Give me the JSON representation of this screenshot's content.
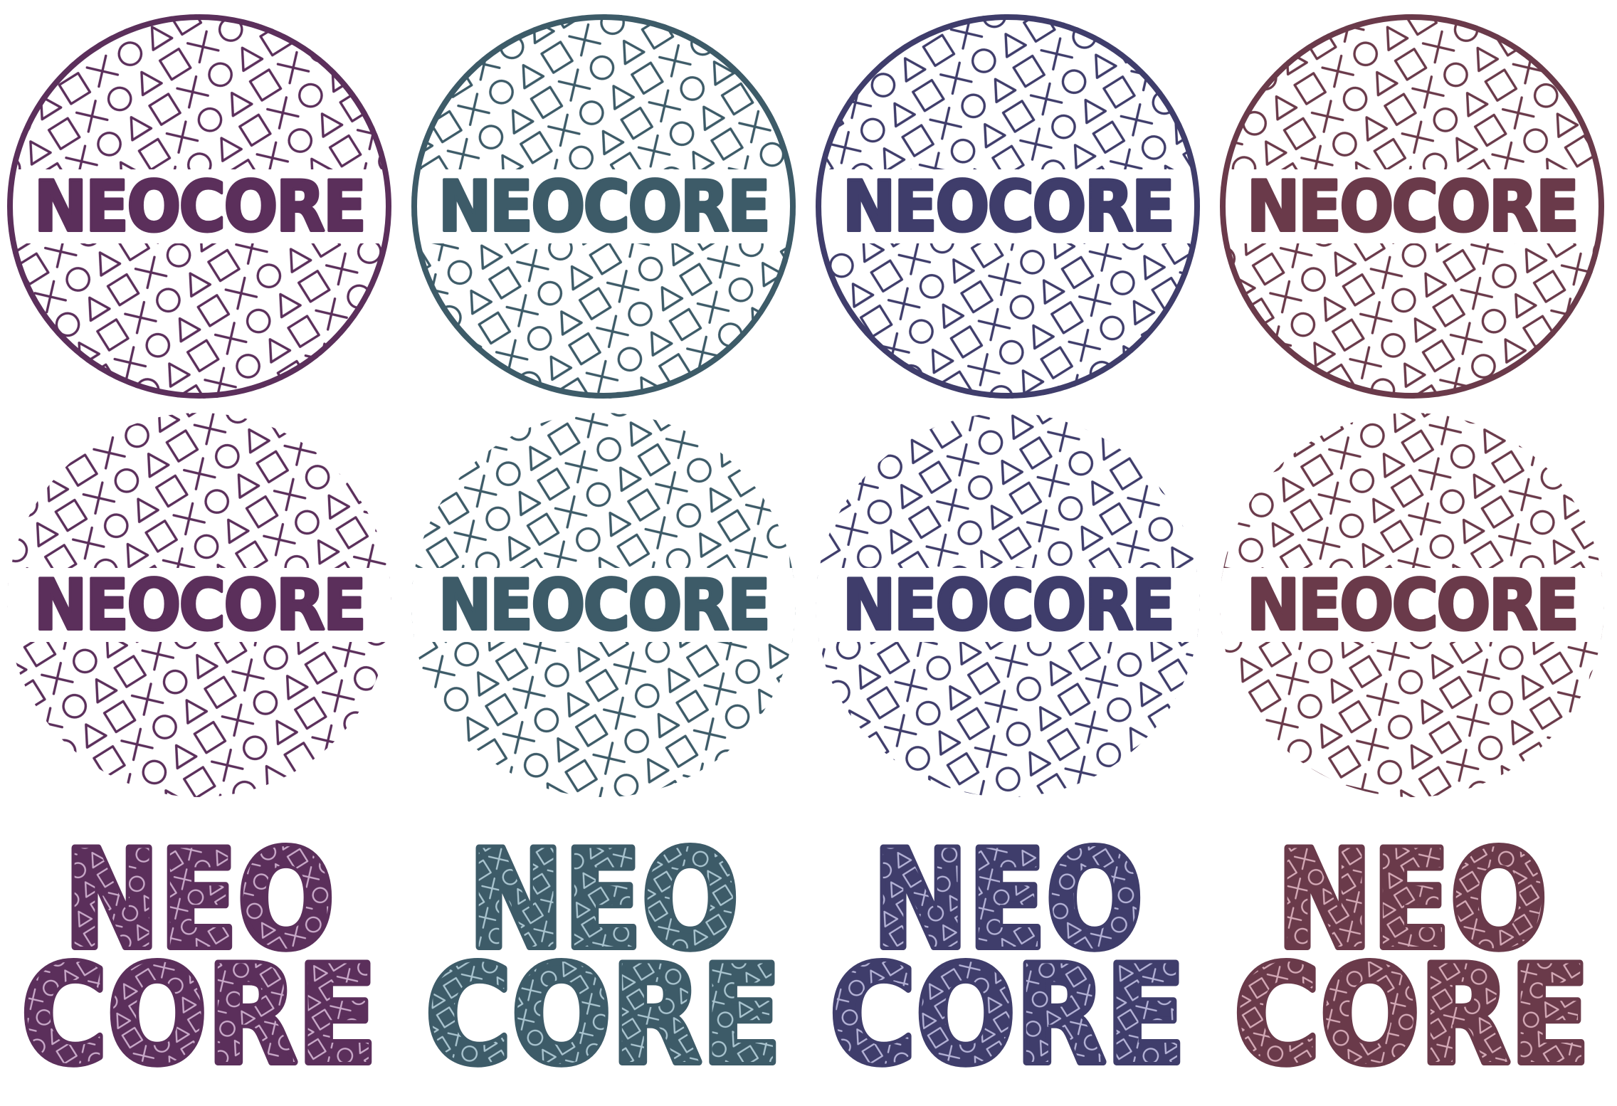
{
  "logo": {
    "wordmark": "NEOCORE",
    "line1": "NEO",
    "line2": "CORE"
  },
  "variants": [
    {
      "name": "plum",
      "color": "#5b2f5b",
      "pattern_light": "#c9a9c9"
    },
    {
      "name": "teal",
      "color": "#3d5b68",
      "pattern_light": "#a9c4cf"
    },
    {
      "name": "indigo",
      "color": "#3f3d6b",
      "pattern_light": "#b4b2d6"
    },
    {
      "name": "mauve",
      "color": "#6a3a4a",
      "pattern_light": "#d4a9b6"
    }
  ],
  "rows": [
    {
      "name": "bordered-circle-badges",
      "style": "badge-with-ring"
    },
    {
      "name": "borderless-circle-badges",
      "style": "badge-no-ring"
    },
    {
      "name": "stacked-wordmarks",
      "style": "stacked-patterned-text"
    }
  ],
  "pattern_icons": [
    "cross-icon",
    "circle-icon",
    "triangle-icon",
    "square-icon"
  ]
}
